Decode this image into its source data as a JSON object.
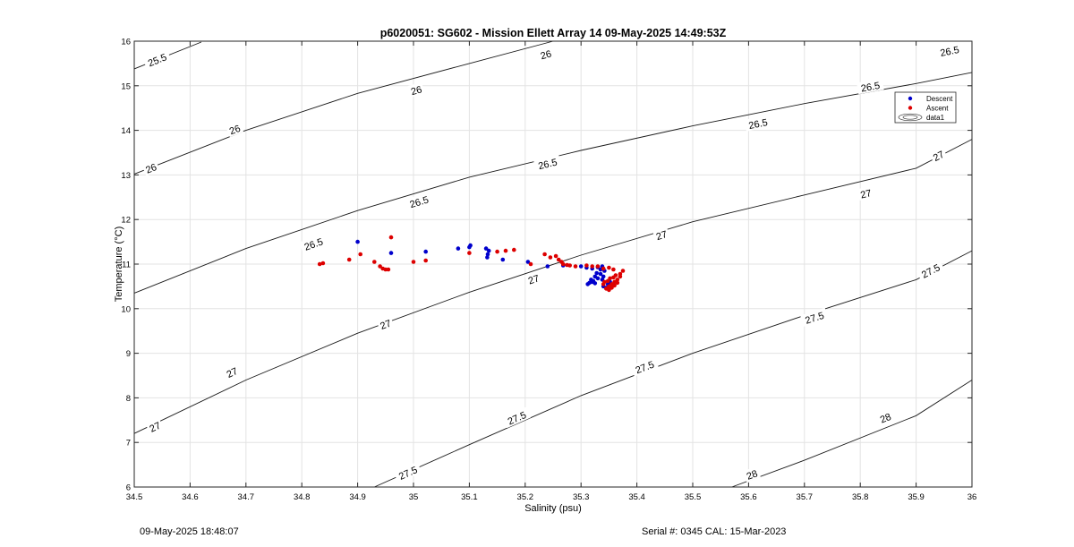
{
  "chart_data": {
    "type": "scatter",
    "title": "p6020051: SG602 - Mission Ellett Array 14 09-May-2025 14:49:53Z",
    "xlabel": "Salinity (psu)",
    "ylabel": "Temperature (°C)",
    "xlim": [
      34.5,
      36.0
    ],
    "ylim": [
      6,
      16
    ],
    "xticks": [
      "34.5",
      "34.6",
      "34.7",
      "34.8",
      "34.9",
      "35",
      "35.1",
      "35.2",
      "35.3",
      "35.4",
      "35.5",
      "35.6",
      "35.7",
      "35.8",
      "35.9",
      "36"
    ],
    "yticks": [
      "6",
      "7",
      "8",
      "9",
      "10",
      "11",
      "12",
      "13",
      "14",
      "15",
      "16"
    ],
    "grid": true,
    "legend_position": "top-right",
    "legend": [
      {
        "label": "Descent",
        "color": "#0000cc",
        "marker": "dot"
      },
      {
        "label": "Ascent",
        "color": "#dd0000",
        "marker": "dot"
      },
      {
        "label": "data1",
        "color": "#333333",
        "marker": "contour"
      }
    ],
    "contours": [
      {
        "level": "25.5",
        "points": [
          [
            34.5,
            15.38
          ],
          [
            34.62,
            15.98
          ]
        ],
        "labels": [
          [
            34.541,
            15.58
          ]
        ]
      },
      {
        "level": "26",
        "points": [
          [
            34.5,
            13.02
          ],
          [
            34.7,
            14.0
          ],
          [
            34.9,
            14.83
          ],
          [
            35.1,
            15.5
          ],
          [
            35.25,
            16.0
          ]
        ],
        "labels": [
          [
            34.53,
            13.15
          ],
          [
            34.68,
            14.02
          ],
          [
            35.005,
            14.9
          ],
          [
            35.237,
            15.7
          ]
        ]
      },
      {
        "level": "26.5",
        "points": [
          [
            34.5,
            10.35
          ],
          [
            34.7,
            11.35
          ],
          [
            34.9,
            12.2
          ],
          [
            35.1,
            12.95
          ],
          [
            35.3,
            13.55
          ],
          [
            35.5,
            14.1
          ],
          [
            35.7,
            14.6
          ],
          [
            35.9,
            15.05
          ],
          [
            36.0,
            15.3
          ]
        ],
        "labels": [
          [
            34.821,
            11.45
          ],
          [
            35.01,
            12.4
          ],
          [
            35.24,
            13.25
          ],
          [
            35.617,
            14.15
          ],
          [
            35.818,
            14.98
          ],
          [
            35.96,
            15.78
          ]
        ]
      },
      {
        "level": "27",
        "points": [
          [
            34.5,
            7.2
          ],
          [
            34.7,
            8.4
          ],
          [
            34.9,
            9.45
          ],
          [
            35.1,
            10.37
          ],
          [
            35.3,
            11.2
          ],
          [
            35.5,
            11.95
          ],
          [
            35.7,
            12.55
          ],
          [
            35.9,
            13.15
          ],
          [
            36.0,
            13.8
          ]
        ],
        "labels": [
          [
            34.537,
            7.35
          ],
          [
            34.675,
            8.57
          ],
          [
            34.95,
            9.65
          ],
          [
            35.215,
            10.66
          ],
          [
            35.444,
            11.65
          ],
          [
            35.81,
            12.58
          ],
          [
            35.94,
            13.43
          ]
        ]
      },
      {
        "level": "27.5",
        "points": [
          [
            34.93,
            6.0
          ],
          [
            35.1,
            6.95
          ],
          [
            35.3,
            8.05
          ],
          [
            35.5,
            9.0
          ],
          [
            35.7,
            9.85
          ],
          [
            35.9,
            10.65
          ],
          [
            36.0,
            11.3
          ]
        ],
        "labels": [
          [
            34.99,
            6.32
          ],
          [
            35.185,
            7.55
          ],
          [
            35.414,
            8.69
          ],
          [
            35.718,
            9.8
          ],
          [
            35.926,
            10.85
          ]
        ]
      },
      {
        "level": "28",
        "points": [
          [
            35.57,
            6.0
          ],
          [
            35.7,
            6.6
          ],
          [
            35.9,
            7.6
          ],
          [
            36.0,
            8.4
          ]
        ],
        "labels": [
          [
            35.606,
            6.28
          ],
          [
            35.845,
            7.55
          ]
        ]
      }
    ],
    "series": [
      {
        "name": "Descent",
        "color": "#0000cc",
        "points": [
          [
            34.9,
            11.5
          ],
          [
            34.96,
            11.25
          ],
          [
            35.022,
            11.28
          ],
          [
            35.08,
            11.35
          ],
          [
            35.1,
            11.38
          ],
          [
            35.102,
            11.42
          ],
          [
            35.13,
            11.35
          ],
          [
            35.135,
            11.3
          ],
          [
            35.133,
            11.22
          ],
          [
            35.132,
            11.15
          ],
          [
            35.16,
            11.1
          ],
          [
            35.205,
            11.05
          ],
          [
            35.24,
            10.95
          ],
          [
            35.268,
            10.97
          ],
          [
            35.3,
            10.95
          ],
          [
            35.31,
            10.92
          ],
          [
            35.32,
            10.9
          ],
          [
            35.33,
            10.93
          ],
          [
            35.335,
            10.88
          ],
          [
            35.338,
            10.95
          ],
          [
            35.342,
            10.85
          ],
          [
            35.328,
            10.8
          ],
          [
            35.335,
            10.78
          ],
          [
            35.325,
            10.72
          ],
          [
            35.34,
            10.72
          ],
          [
            35.318,
            10.65
          ],
          [
            35.33,
            10.68
          ],
          [
            35.32,
            10.6
          ],
          [
            35.315,
            10.58
          ],
          [
            35.325,
            10.57
          ],
          [
            35.312,
            10.55
          ],
          [
            35.34,
            10.5
          ],
          [
            35.345,
            10.47
          ],
          [
            35.35,
            10.5
          ],
          [
            35.348,
            10.55
          ],
          [
            35.352,
            10.6
          ],
          [
            35.322,
            10.62
          ],
          [
            35.338,
            10.65
          ]
        ]
      },
      {
        "name": "Ascent",
        "color": "#dd0000",
        "points": [
          [
            34.832,
            11.0
          ],
          [
            34.838,
            11.02
          ],
          [
            34.885,
            11.1
          ],
          [
            34.905,
            11.22
          ],
          [
            34.93,
            11.05
          ],
          [
            34.94,
            10.95
          ],
          [
            34.945,
            10.9
          ],
          [
            34.95,
            10.88
          ],
          [
            34.955,
            10.88
          ],
          [
            34.96,
            11.6
          ],
          [
            35.0,
            11.05
          ],
          [
            35.022,
            11.08
          ],
          [
            35.1,
            11.25
          ],
          [
            35.15,
            11.28
          ],
          [
            35.165,
            11.3
          ],
          [
            35.18,
            11.32
          ],
          [
            35.21,
            11.0
          ],
          [
            35.235,
            11.22
          ],
          [
            35.245,
            11.15
          ],
          [
            35.255,
            11.18
          ],
          [
            35.26,
            11.1
          ],
          [
            35.265,
            11.05
          ],
          [
            35.268,
            11.0
          ],
          [
            35.275,
            10.98
          ],
          [
            35.28,
            10.97
          ],
          [
            35.29,
            10.95
          ],
          [
            35.31,
            10.97
          ],
          [
            35.32,
            10.95
          ],
          [
            35.33,
            10.95
          ],
          [
            35.34,
            10.9
          ],
          [
            35.35,
            10.92
          ],
          [
            35.358,
            10.88
          ],
          [
            35.362,
            10.75
          ],
          [
            35.37,
            10.72
          ],
          [
            35.375,
            10.85
          ],
          [
            35.365,
            10.65
          ],
          [
            35.36,
            10.6
          ],
          [
            35.355,
            10.55
          ],
          [
            35.35,
            10.5
          ],
          [
            35.345,
            10.45
          ],
          [
            35.35,
            10.42
          ],
          [
            35.355,
            10.47
          ],
          [
            35.36,
            10.52
          ],
          [
            35.34,
            10.55
          ],
          [
            35.342,
            10.6
          ],
          [
            35.348,
            10.62
          ],
          [
            35.352,
            10.68
          ],
          [
            35.358,
            10.7
          ],
          [
            35.37,
            10.78
          ],
          [
            35.365,
            10.58
          ]
        ]
      }
    ]
  },
  "footer": {
    "timestamp": "09-May-2025 18:48:07",
    "serial_cal": "Serial #: 0345  CAL: 15-Mar-2023"
  }
}
